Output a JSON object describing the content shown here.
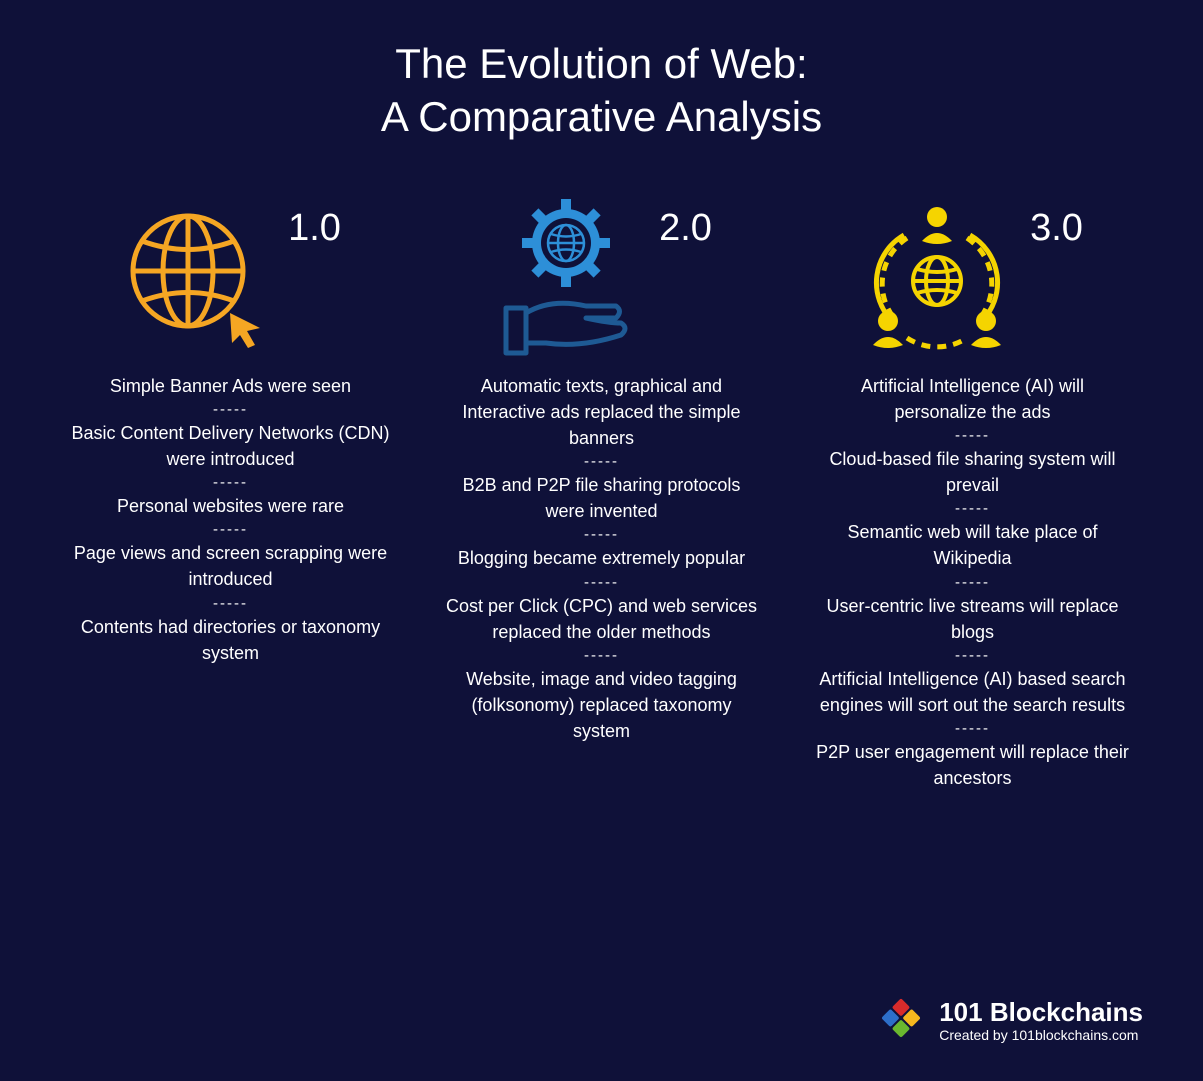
{
  "title": {
    "line1": "The Evolution of Web:",
    "line2": "A Comparative Analysis"
  },
  "colors": {
    "background": "#0f1139",
    "text": "#ffffff",
    "icon1": "#f5a623",
    "icon2_gear": "#2d8fd8",
    "icon2_hand": "#1e5a94",
    "icon3": "#f5d400",
    "logo_r": "#d82b2b",
    "logo_g": "#6ab82f",
    "logo_b": "#2d6fc9",
    "logo_y": "#f5b71e"
  },
  "separator": "-----",
  "columns": [
    {
      "version": "1.0",
      "icon_name": "globe-cursor-icon",
      "points": [
        "Simple Banner Ads were seen",
        "Basic Content Delivery Networks (CDN) were introduced",
        "Personal websites were rare",
        "Page views and screen scrapping were introduced",
        "Contents had directories or taxonomy system"
      ]
    },
    {
      "version": "2.0",
      "icon_name": "hand-gear-globe-icon",
      "points": [
        "Automatic texts, graphical and Interactive ads replaced the simple banners",
        "B2B and P2P file sharing protocols were invented",
        "Blogging became extremely popular",
        "Cost per Click (CPC) and web services replaced the older methods",
        "Website, image and video tagging (folksonomy) replaced taxonomy system"
      ]
    },
    {
      "version": "3.0",
      "icon_name": "globe-people-network-icon",
      "points": [
        "Artificial Intelligence (AI) will personalize the ads",
        "Cloud-based file sharing system will prevail",
        "Semantic web will take place of Wikipedia",
        "User-centric live streams will replace blogs",
        "Artificial Intelligence (AI) based search engines will sort out the search results",
        "P2P user engagement will replace their ancestors"
      ]
    }
  ],
  "footer": {
    "brand": "101 Blockchains",
    "byline": "Created by 101blockchains.com"
  }
}
